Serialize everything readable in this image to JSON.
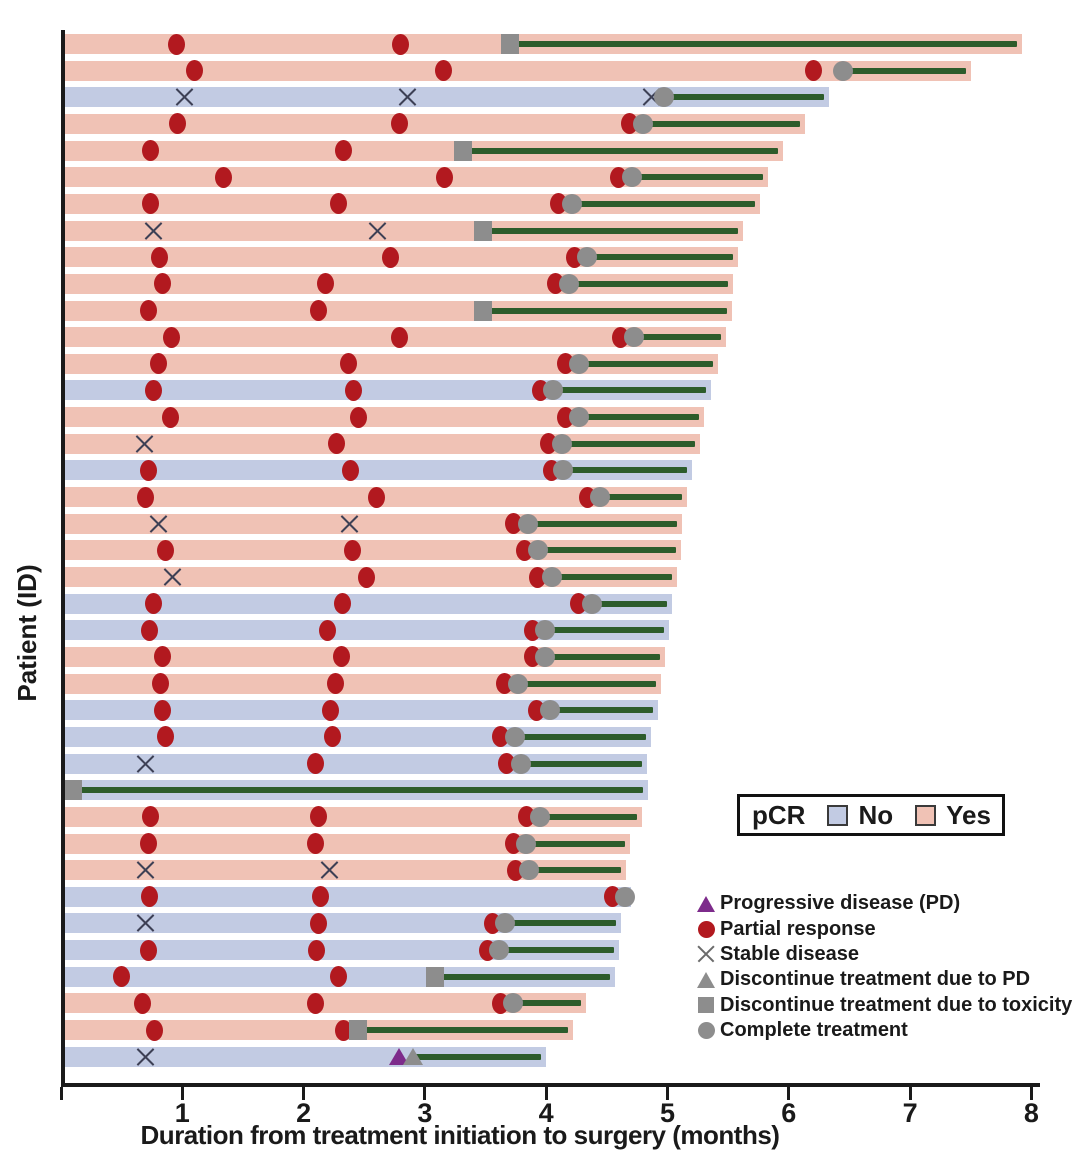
{
  "axes": {
    "x_label": "Duration from treatment initiation to surgery (months)",
    "y_label": "Patient (ID)",
    "x_ticks": [
      1,
      2,
      3,
      4,
      5,
      6,
      7,
      8
    ],
    "x_min": 0,
    "x_max": 8
  },
  "legend_pcr": {
    "title": "pCR",
    "items": [
      {
        "label": "No",
        "color": "#c2cbe3"
      },
      {
        "label": "Yes",
        "color": "#f0c2b5"
      }
    ]
  },
  "legend_markers": {
    "items": [
      {
        "symbol": "triangle",
        "color": "#7d2b8b",
        "label": "Progressive disease (PD)"
      },
      {
        "symbol": "circle",
        "color": "#b2191f",
        "label": "Partial response"
      },
      {
        "symbol": "x",
        "color": "#6b6b6b",
        "label": "Stable disease"
      },
      {
        "symbol": "triangle",
        "color": "#8d8d8d",
        "label": "Discontinue treatment due to PD"
      },
      {
        "symbol": "square",
        "color": "#8d8d8d",
        "label": "Discontinue treatment due to toxicity"
      },
      {
        "symbol": "circle",
        "color": "#8d8d8d",
        "label": "Complete treatment"
      }
    ]
  },
  "colors": {
    "pcr_yes_bar": "#f0c2b5",
    "pcr_no_bar": "#c2cbe3",
    "partial_response": "#b2191f",
    "stable_disease_x": "#3d4055",
    "progressive_disease": "#7d2b8b",
    "gray_marker": "#8d8d8d",
    "treatment_line": "#2d5c2b",
    "axis": "#1a1a1a"
  },
  "chart_data": {
    "type": "bar",
    "subtype": "swimmer-plot",
    "x_unit": "months",
    "xlabel": "Duration from treatment initiation to surgery (months)",
    "ylabel": "Patient (ID)",
    "xlim": [
      0,
      8
    ],
    "grid": false,
    "marker_meanings": {
      "pr": "Partial response (red circle)",
      "sd": "Stable disease (X)",
      "pd": "Progressive disease (purple triangle)",
      "end_marker_circle": "Complete treatment",
      "end_marker_square": "Discontinue treatment due to toxicity",
      "end_marker_triangle": "Discontinue treatment due to PD",
      "line": "time from end of treatment to surgery",
      "surgery": "bar end = duration from treatment initiation to surgery (months)"
    },
    "rows": [
      {
        "pcr": "Yes",
        "pr": [
          0.95,
          2.8
        ],
        "sd": [],
        "pd": [],
        "end_t": 3.7,
        "end_marker": "square",
        "surgery": 7.92
      },
      {
        "pcr": "Yes",
        "pr": [
          1.1,
          3.15,
          6.2
        ],
        "sd": [],
        "pd": [],
        "end_t": 6.45,
        "end_marker": "circle",
        "surgery": 7.5
      },
      {
        "pcr": "No",
        "pr": [],
        "sd": [
          1.02,
          2.86,
          4.87
        ],
        "pd": [],
        "end_t": 4.97,
        "end_marker": "circle",
        "surgery": 6.33
      },
      {
        "pcr": "Yes",
        "pr": [
          0.96,
          2.79,
          4.69
        ],
        "sd": [],
        "pd": [],
        "end_t": 4.8,
        "end_marker": "circle",
        "surgery": 6.13
      },
      {
        "pcr": "Yes",
        "pr": [
          0.74,
          2.33
        ],
        "sd": [],
        "pd": [],
        "end_t": 3.31,
        "end_marker": "square",
        "surgery": 5.95
      },
      {
        "pcr": "Yes",
        "pr": [
          1.34,
          3.16,
          4.6
        ],
        "sd": [],
        "pd": [],
        "end_t": 4.71,
        "end_marker": "circle",
        "surgery": 5.83
      },
      {
        "pcr": "Yes",
        "pr": [
          0.74,
          2.29,
          4.1
        ],
        "sd": [],
        "pd": [],
        "end_t": 4.21,
        "end_marker": "circle",
        "surgery": 5.76
      },
      {
        "pcr": "Yes",
        "pr": [],
        "sd": [
          0.76,
          2.61
        ],
        "pd": [],
        "end_t": 3.48,
        "end_marker": "square",
        "surgery": 5.62
      },
      {
        "pcr": "Yes",
        "pr": [
          0.81,
          2.72,
          4.23
        ],
        "sd": [],
        "pd": [],
        "end_t": 4.34,
        "end_marker": "circle",
        "surgery": 5.58
      },
      {
        "pcr": "Yes",
        "pr": [
          0.84,
          2.18,
          4.08
        ],
        "sd": [],
        "pd": [],
        "end_t": 4.19,
        "end_marker": "circle",
        "surgery": 5.54
      },
      {
        "pcr": "Yes",
        "pr": [
          0.72,
          2.12
        ],
        "sd": [],
        "pd": [],
        "end_t": 3.48,
        "end_marker": "square",
        "surgery": 5.53
      },
      {
        "pcr": "Yes",
        "pr": [
          0.91,
          2.79,
          4.61
        ],
        "sd": [],
        "pd": [],
        "end_t": 4.72,
        "end_marker": "circle",
        "surgery": 5.48
      },
      {
        "pcr": "Yes",
        "pr": [
          0.8,
          2.37,
          4.16
        ],
        "sd": [],
        "pd": [],
        "end_t": 4.27,
        "end_marker": "circle",
        "surgery": 5.42
      },
      {
        "pcr": "No",
        "pr": [
          0.76,
          2.41,
          3.95
        ],
        "sd": [],
        "pd": [],
        "end_t": 4.06,
        "end_marker": "circle",
        "surgery": 5.36
      },
      {
        "pcr": "Yes",
        "pr": [
          0.9,
          2.45,
          4.16
        ],
        "sd": [],
        "pd": [],
        "end_t": 4.27,
        "end_marker": "circle",
        "surgery": 5.3
      },
      {
        "pcr": "Yes",
        "pr": [
          2.27,
          4.02
        ],
        "sd": [
          0.69
        ],
        "pd": [],
        "end_t": 4.13,
        "end_marker": "circle",
        "surgery": 5.27
      },
      {
        "pcr": "No",
        "pr": [
          0.72,
          2.39,
          4.04
        ],
        "sd": [],
        "pd": [],
        "end_t": 4.14,
        "end_marker": "circle",
        "surgery": 5.2
      },
      {
        "pcr": "Yes",
        "pr": [
          0.7,
          2.6,
          4.34
        ],
        "sd": [],
        "pd": [],
        "end_t": 4.44,
        "end_marker": "circle",
        "surgery": 5.16
      },
      {
        "pcr": "Yes",
        "pr": [
          3.73
        ],
        "sd": [
          0.8,
          2.38
        ],
        "pd": [],
        "end_t": 3.85,
        "end_marker": "circle",
        "surgery": 5.12
      },
      {
        "pcr": "Yes",
        "pr": [
          0.86,
          2.4,
          3.82
        ],
        "sd": [],
        "pd": [],
        "end_t": 3.93,
        "end_marker": "circle",
        "surgery": 5.11
      },
      {
        "pcr": "Yes",
        "pr": [
          2.52,
          3.93
        ],
        "sd": [
          0.92
        ],
        "pd": [],
        "end_t": 4.05,
        "end_marker": "circle",
        "surgery": 5.08
      },
      {
        "pcr": "No",
        "pr": [
          0.76,
          2.32,
          4.27
        ],
        "sd": [],
        "pd": [],
        "end_t": 4.38,
        "end_marker": "circle",
        "surgery": 5.04
      },
      {
        "pcr": "No",
        "pr": [
          0.73,
          2.2,
          3.89
        ],
        "sd": [],
        "pd": [],
        "end_t": 3.99,
        "end_marker": "circle",
        "surgery": 5.01
      },
      {
        "pcr": "Yes",
        "pr": [
          0.84,
          2.31,
          3.89
        ],
        "sd": [],
        "pd": [],
        "end_t": 3.99,
        "end_marker": "circle",
        "surgery": 4.98
      },
      {
        "pcr": "Yes",
        "pr": [
          0.82,
          2.26,
          3.66
        ],
        "sd": [],
        "pd": [],
        "end_t": 3.77,
        "end_marker": "circle",
        "surgery": 4.95
      },
      {
        "pcr": "No",
        "pr": [
          0.84,
          2.22,
          3.92
        ],
        "sd": [],
        "pd": [],
        "end_t": 4.03,
        "end_marker": "circle",
        "surgery": 4.92
      },
      {
        "pcr": "No",
        "pr": [
          0.86,
          2.24,
          3.62
        ],
        "sd": [],
        "pd": [],
        "end_t": 3.74,
        "end_marker": "circle",
        "surgery": 4.86
      },
      {
        "pcr": "No",
        "pr": [
          2.1,
          3.67
        ],
        "sd": [
          0.7
        ],
        "pd": [],
        "end_t": 3.79,
        "end_marker": "circle",
        "surgery": 4.83
      },
      {
        "pcr": "No",
        "pr": [],
        "sd": [],
        "pd": [],
        "end_t": 0.1,
        "end_marker": "square",
        "surgery": 4.84
      },
      {
        "pcr": "Yes",
        "pr": [
          0.74,
          2.12,
          3.84
        ],
        "sd": [],
        "pd": [],
        "end_t": 3.95,
        "end_marker": "circle",
        "surgery": 4.79
      },
      {
        "pcr": "Yes",
        "pr": [
          0.72,
          2.1,
          3.73
        ],
        "sd": [],
        "pd": [],
        "end_t": 3.83,
        "end_marker": "circle",
        "surgery": 4.69
      },
      {
        "pcr": "Yes",
        "pr": [
          3.75
        ],
        "sd": [
          0.7,
          2.21
        ],
        "pd": [],
        "end_t": 3.86,
        "end_marker": "circle",
        "surgery": 4.66
      },
      {
        "pcr": "No",
        "pr": [
          0.73,
          2.14,
          4.55
        ],
        "sd": [],
        "pd": [],
        "end_t": 4.65,
        "end_marker": "circle",
        "surgery": 4.7
      },
      {
        "pcr": "No",
        "pr": [
          2.12,
          3.56
        ],
        "sd": [
          0.7
        ],
        "pd": [],
        "end_t": 3.66,
        "end_marker": "circle",
        "surgery": 4.62
      },
      {
        "pcr": "No",
        "pr": [
          0.72,
          2.11,
          3.52
        ],
        "sd": [],
        "pd": [],
        "end_t": 3.61,
        "end_marker": "circle",
        "surgery": 4.6
      },
      {
        "pcr": "No",
        "pr": [
          0.5,
          2.29
        ],
        "sd": [],
        "pd": [],
        "end_t": 3.08,
        "end_marker": "square",
        "surgery": 4.57
      },
      {
        "pcr": "Yes",
        "pr": [
          0.67,
          2.1,
          3.62
        ],
        "sd": [],
        "pd": [],
        "end_t": 3.73,
        "end_marker": "circle",
        "surgery": 4.33
      },
      {
        "pcr": "Yes",
        "pr": [
          0.77,
          2.33
        ],
        "sd": [],
        "pd": [],
        "end_t": 2.45,
        "end_marker": "square",
        "surgery": 4.22
      },
      {
        "pcr": "No",
        "pr": [],
        "sd": [
          0.7
        ],
        "pd": [
          2.79
        ],
        "end_t": 2.9,
        "end_marker": "triangle",
        "surgery": 4.0
      }
    ]
  }
}
